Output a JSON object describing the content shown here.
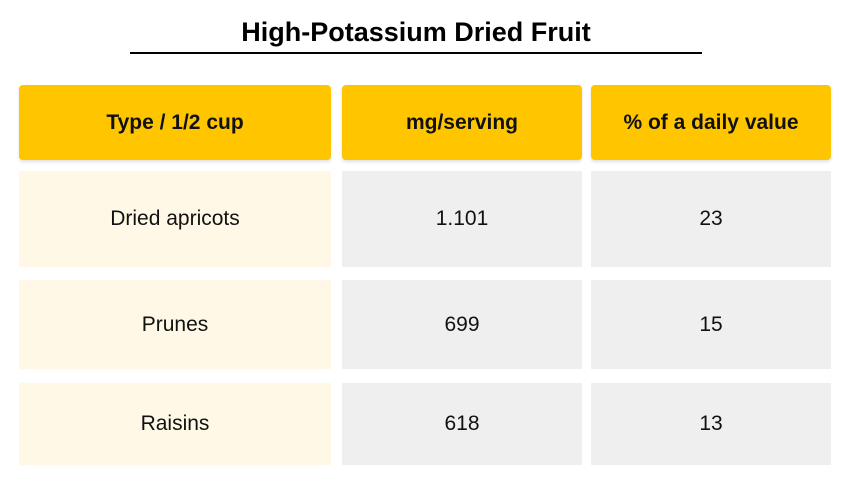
{
  "chart_data": {
    "type": "table",
    "title": "High-Potassium Dried Fruit",
    "columns": [
      "Type / 1/2 cup",
      "mg/serving",
      "% of a daily value"
    ],
    "rows": [
      [
        "Dried apricots",
        "1.101",
        "23"
      ],
      [
        "Prunes",
        "699",
        "15"
      ],
      [
        "Raisins",
        "618",
        "13"
      ]
    ]
  },
  "colors": {
    "header_fill": "#FFC600",
    "first_column_fill": "#FFF8E6",
    "other_columns_fill": "#EFEFEF",
    "title_rule": "#000000"
  }
}
